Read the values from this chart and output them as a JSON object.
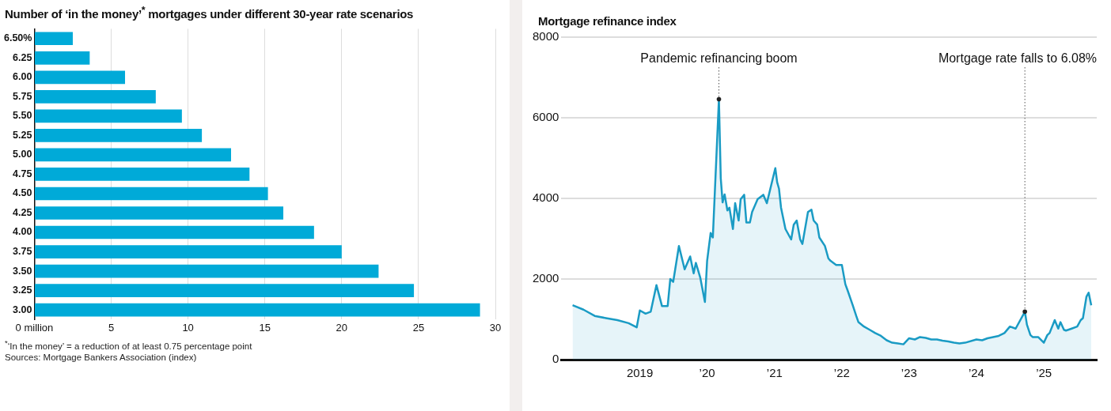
{
  "chart_data": [
    {
      "type": "bar",
      "orientation": "horizontal",
      "title": "Number of ‘in the money’$^{*}$ mortgages under different 30-year rate scenarios",
      "categories": [
        "6.50%",
        "6.25",
        "6.00",
        "5.75",
        "5.50",
        "5.25",
        "5.00",
        "4.75",
        "4.50",
        "4.25",
        "4.00",
        "3.75",
        "3.50",
        "3.25",
        "3.00"
      ],
      "values": [
        2.5,
        3.6,
        5.9,
        7.9,
        9.6,
        10.9,
        12.8,
        14.0,
        15.2,
        16.2,
        18.2,
        20.0,
        22.4,
        24.7,
        29.0
      ],
      "color": "#00aad8",
      "xlim": [
        0,
        30
      ],
      "xticks": [
        {
          "value": 0,
          "label": "0 million"
        },
        5,
        10,
        15,
        20,
        25,
        30
      ],
      "grid": "x",
      "annotations": [
        "$^{*}$‘In the money’ = a reduction of at least 0.75 percentage point",
        "Sources: Mortgage Bankers Association (index)"
      ]
    },
    {
      "type": "area",
      "title": "Mortgage refinance index",
      "marker": "none",
      "grid": "y",
      "x": [
        "2018-01-01",
        "2018-03-01",
        "2018-05-01",
        "2018-07-01",
        "2018-09-01",
        "2018-11-01",
        "2018-12-15",
        "2019-01-01",
        "2019-02-01",
        "2019-03-01",
        "2019-04-01",
        "2019-05-01",
        "2019-06-01",
        "2019-06-15",
        "2019-07-01",
        "2019-08-01",
        "2019-09-01",
        "2019-10-01",
        "2019-10-20",
        "2019-11-01",
        "2019-11-25",
        "2019-12-20",
        "2020-01-01",
        "2020-01-20",
        "2020-02-01",
        "2020-03-05",
        "2020-03-15",
        "2020-03-25",
        "2020-04-05",
        "2020-04-20",
        "2020-05-01",
        "2020-05-20",
        "2020-06-01",
        "2020-06-20",
        "2020-07-01",
        "2020-07-20",
        "2020-08-01",
        "2020-08-20",
        "2020-09-01",
        "2020-10-01",
        "2020-11-01",
        "2020-11-20",
        "2021-01-05",
        "2021-01-15",
        "2021-01-25",
        "2021-02-05",
        "2021-03-01",
        "2021-04-01",
        "2021-04-15",
        "2021-05-01",
        "2021-05-20",
        "2021-06-01",
        "2021-07-01",
        "2021-07-20",
        "2021-08-01",
        "2021-08-20",
        "2021-09-01",
        "2021-10-01",
        "2021-10-20",
        "2021-11-01",
        "2021-12-01",
        "2022-01-01",
        "2022-01-20",
        "2022-02-01",
        "2022-03-01",
        "2022-03-20",
        "2022-04-01",
        "2022-05-01",
        "2022-06-01",
        "2022-07-01",
        "2022-08-01",
        "2022-09-01",
        "2022-10-01",
        "2022-11-01",
        "2022-12-01",
        "2023-01-01",
        "2023-02-01",
        "2023-03-01",
        "2023-04-01",
        "2023-05-01",
        "2023-06-01",
        "2023-07-01",
        "2023-08-01",
        "2023-09-01",
        "2023-10-01",
        "2023-11-01",
        "2024-01-01",
        "2024-02-01",
        "2024-03-01",
        "2024-04-01",
        "2024-05-01",
        "2024-06-01",
        "2024-07-01",
        "2024-08-01",
        "2024-09-20",
        "2024-10-01",
        "2024-10-20",
        "2024-11-01",
        "2024-12-01",
        "2025-01-01",
        "2025-01-20",
        "2025-02-01",
        "2025-03-01",
        "2025-03-20",
        "2025-04-01",
        "2025-04-20",
        "2025-05-01",
        "2025-06-01",
        "2025-07-01",
        "2025-07-20",
        "2025-08-01",
        "2025-08-20",
        "2025-09-01",
        "2025-09-15"
      ],
      "series": [
        {
          "color": "#1a9bc4",
          "values": [
            1350,
            1240,
            1085,
            1030,
            980,
            905,
            800,
            1220,
            1140,
            1190,
            1850,
            1330,
            1330,
            2000,
            1930,
            2820,
            2240,
            2560,
            2140,
            2400,
            2030,
            1430,
            2450,
            3140,
            3030,
            6460,
            4500,
            3900,
            4100,
            3700,
            3770,
            3240,
            3880,
            3450,
            3980,
            4090,
            3400,
            3400,
            3660,
            3980,
            4090,
            3880,
            4750,
            4400,
            4240,
            3770,
            3240,
            2980,
            3350,
            3450,
            2980,
            2870,
            3660,
            3720,
            3450,
            3350,
            3030,
            2820,
            2510,
            2450,
            2350,
            2350,
            1870,
            1720,
            1350,
            1085,
            930,
            820,
            740,
            660,
            590,
            480,
            420,
            400,
            380,
            530,
            500,
            560,
            540,
            500,
            500,
            470,
            450,
            420,
            400,
            420,
            500,
            480,
            530,
            560,
            590,
            660,
            820,
            770,
            1190,
            870,
            610,
            560,
            560,
            420,
            610,
            660,
            980,
            770,
            930,
            740,
            720,
            770,
            820,
            980,
            1030,
            1560,
            1660,
            1350
          ]
        }
      ],
      "xlim": [
        "2017-11-01",
        "2025-10-15"
      ],
      "xticks": [
        {
          "value": "2019-01-01",
          "label": "2019"
        },
        {
          "value": "2020-01-01",
          "label": "’20"
        },
        {
          "value": "2021-01-01",
          "label": "’21"
        },
        {
          "value": "2022-01-01",
          "label": "’22"
        },
        {
          "value": "2023-01-01",
          "label": "’23"
        },
        {
          "value": "2024-01-01",
          "label": "’24"
        },
        {
          "value": "2025-01-01",
          "label": "’25"
        }
      ],
      "ylim": [
        0,
        8000
      ],
      "yticks": [
        0,
        2000,
        4000,
        6000,
        8000
      ],
      "annotations": [
        {
          "text": "Pandemic refinancing boom",
          "x": "2020-03-05",
          "y": 6460
        },
        {
          "text": "Mortgage rate falls to 6.08%",
          "x": "2024-09-20",
          "y": 1190
        }
      ]
    }
  ]
}
